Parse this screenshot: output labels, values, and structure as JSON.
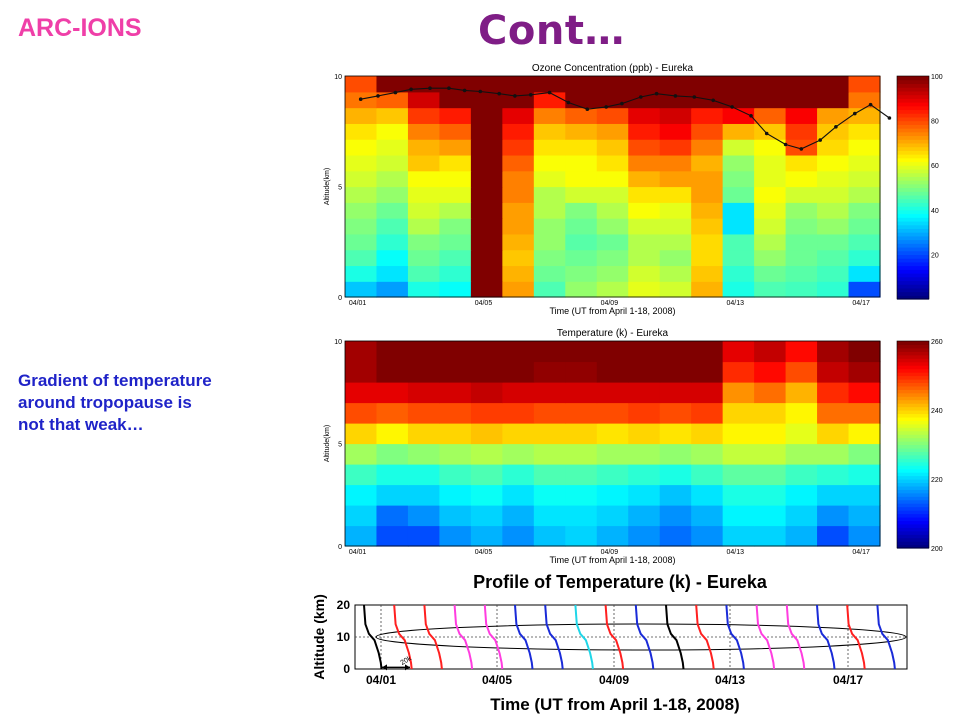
{
  "header": {
    "brand": "ARC-IONS",
    "title": "Cont…"
  },
  "note": {
    "lines": [
      "Gradient of temperature",
      "around tropopause is",
      "not that weak…"
    ]
  },
  "chart_data": [
    {
      "type": "heatmap",
      "title": "Ozone Concentration (ppb) - Eureka",
      "xlabel": "Time (UT from April 1-18, 2008)",
      "ylabel": "Altitude(km)",
      "xticks": [
        "04/01",
        "04/05",
        "04/09",
        "04/13",
        "04/17"
      ],
      "yticks": [
        0,
        5,
        10
      ],
      "ylim": [
        0,
        10
      ],
      "colorbar": {
        "ticks": [
          20,
          40,
          60,
          80,
          100
        ],
        "range": [
          0,
          100
        ]
      },
      "columns": 17,
      "rows": 14,
      "values": [
        [
          32,
          28,
          40,
          38,
          100,
          72,
          45,
          52,
          55,
          60,
          58,
          70,
          40,
          45,
          44,
          42,
          20
        ],
        [
          40,
          35,
          45,
          42,
          100,
          70,
          48,
          50,
          52,
          58,
          55,
          68,
          42,
          48,
          46,
          44,
          35
        ],
        [
          45,
          38,
          48,
          45,
          100,
          68,
          50,
          48,
          50,
          55,
          52,
          66,
          45,
          52,
          48,
          46,
          42
        ],
        [
          48,
          42,
          50,
          48,
          100,
          70,
          52,
          46,
          48,
          55,
          55,
          66,
          45,
          55,
          48,
          48,
          45
        ],
        [
          50,
          45,
          55,
          50,
          100,
          72,
          52,
          48,
          52,
          58,
          58,
          68,
          35,
          58,
          50,
          52,
          48
        ],
        [
          52,
          48,
          58,
          55,
          100,
          72,
          55,
          50,
          55,
          62,
          60,
          70,
          35,
          60,
          52,
          55,
          50
        ],
        [
          55,
          52,
          60,
          60,
          100,
          75,
          55,
          58,
          58,
          65,
          65,
          72,
          48,
          62,
          58,
          58,
          55
        ],
        [
          58,
          55,
          62,
          62,
          100,
          75,
          60,
          62,
          62,
          70,
          72,
          72,
          50,
          60,
          62,
          60,
          58
        ],
        [
          60,
          58,
          68,
          65,
          100,
          78,
          62,
          62,
          65,
          75,
          75,
          70,
          52,
          60,
          65,
          62,
          60
        ],
        [
          62,
          60,
          70,
          72,
          100,
          82,
          65,
          65,
          68,
          80,
          82,
          75,
          58,
          62,
          80,
          66,
          62
        ],
        [
          65,
          62,
          75,
          78,
          100,
          85,
          68,
          70,
          72,
          85,
          88,
          80,
          70,
          68,
          82,
          68,
          65
        ],
        [
          70,
          68,
          82,
          85,
          100,
          90,
          75,
          78,
          80,
          90,
          92,
          85,
          88,
          78,
          88,
          72,
          70
        ],
        [
          76,
          78,
          92,
          100,
          100,
          100,
          85,
          100,
          100,
          100,
          100,
          100,
          100,
          100,
          100,
          100,
          76
        ],
        [
          80,
          100,
          100,
          100,
          100,
          100,
          100,
          100,
          100,
          100,
          100,
          100,
          100,
          100,
          100,
          100,
          80
        ]
      ],
      "overlay_line": {
        "x": [
          0.0,
          0.55,
          1.1,
          1.6,
          2.2,
          2.8,
          3.3,
          3.8,
          4.4,
          4.9,
          5.4,
          6.0,
          6.6,
          7.2,
          7.8,
          8.3,
          8.9,
          9.4,
          10.0,
          10.6,
          11.2,
          11.8,
          12.4,
          12.9,
          13.5,
          14.0,
          14.6,
          15.1,
          15.7,
          16.2,
          16.8
        ],
        "y": [
          8.95,
          9.1,
          9.25,
          9.4,
          9.45,
          9.45,
          9.35,
          9.3,
          9.2,
          9.1,
          9.15,
          9.25,
          8.8,
          8.5,
          8.6,
          8.75,
          9.05,
          9.2,
          9.1,
          9.05,
          8.9,
          8.6,
          8.2,
          7.4,
          6.9,
          6.7,
          7.1,
          7.7,
          8.3,
          8.7,
          8.1
        ]
      }
    },
    {
      "type": "heatmap",
      "title": "Temperature (k) - Eureka",
      "xlabel": "Time (UT from April 1-18, 2008)",
      "ylabel": "Altitude(km)",
      "xticks": [
        "04/01",
        "04/05",
        "04/09",
        "04/13",
        "04/17"
      ],
      "yticks": [
        0,
        5,
        10
      ],
      "ylim": [
        0,
        10
      ],
      "colorbar": {
        "ticks": [
          200,
          220,
          240,
          260
        ],
        "range": [
          200,
          260
        ]
      },
      "columns": 17,
      "rows": 10,
      "values": [
        [
          218,
          212,
          212,
          216,
          218,
          216,
          219,
          220,
          218,
          216,
          214,
          216,
          220,
          220,
          218,
          212,
          216
        ],
        [
          220,
          214,
          216,
          219,
          220,
          218,
          221,
          221,
          220,
          218,
          216,
          218,
          222,
          222,
          220,
          216,
          218
        ],
        [
          222,
          220,
          220,
          222,
          223,
          221,
          223,
          223,
          222,
          221,
          219,
          221,
          224,
          224,
          222,
          220,
          220
        ],
        [
          226,
          224,
          224,
          226,
          227,
          225,
          227,
          227,
          226,
          225,
          224,
          226,
          228,
          228,
          226,
          225,
          224
        ],
        [
          232,
          230,
          231,
          232,
          233,
          232,
          233,
          233,
          232,
          232,
          231,
          232,
          234,
          234,
          232,
          232,
          230
        ],
        [
          240,
          238,
          240,
          240,
          241,
          240,
          240,
          240,
          239,
          240,
          239,
          240,
          238,
          238,
          236,
          240,
          238
        ],
        [
          248,
          247,
          248,
          248,
          249,
          249,
          248,
          248,
          248,
          249,
          248,
          249,
          240,
          240,
          238,
          246,
          246
        ],
        [
          254,
          254,
          255,
          255,
          256,
          255,
          255,
          255,
          255,
          255,
          255,
          255,
          244,
          246,
          242,
          250,
          252
        ],
        [
          258,
          260,
          260,
          260,
          260,
          260,
          259,
          259,
          260,
          260,
          260,
          260,
          250,
          252,
          248,
          256,
          258
        ],
        [
          258,
          260,
          260,
          260,
          260,
          260,
          260,
          260,
          260,
          260,
          260,
          260,
          254,
          256,
          252,
          258,
          260
        ]
      ]
    },
    {
      "type": "line",
      "title": "Profile of Temperature (k) - Eureka",
      "xlabel": "Time (UT from April 1-18, 2008)",
      "ylabel": "Altitude (km)",
      "xticks": [
        "04/01",
        "04/05",
        "04/09",
        "04/13",
        "04/17"
      ],
      "yticks": [
        0,
        10,
        20
      ],
      "ylim": [
        0,
        20
      ],
      "reference_line_y": 10,
      "inset_label": "20k",
      "colors": [
        "#000000",
        "#ff2020",
        "#ff2020",
        "#ff3de0",
        "#ff3de0",
        "#1a2bd8",
        "#1a2bd8",
        "#1fd6e8",
        "#ff2020",
        "#1a2bd8",
        "#000000",
        "#ff2020",
        "#1a2bd8",
        "#ff3de0",
        "#ff3de0",
        "#1a2bd8",
        "#ff2020",
        "#1a2bd8"
      ],
      "profile_shape": {
        "x_offset": [
          0.0,
          0.1,
          0.35,
          0.75,
          1.05,
          1.2,
          1.25
        ],
        "y": [
          20,
          14,
          11,
          9,
          5,
          2,
          0
        ]
      }
    }
  ]
}
